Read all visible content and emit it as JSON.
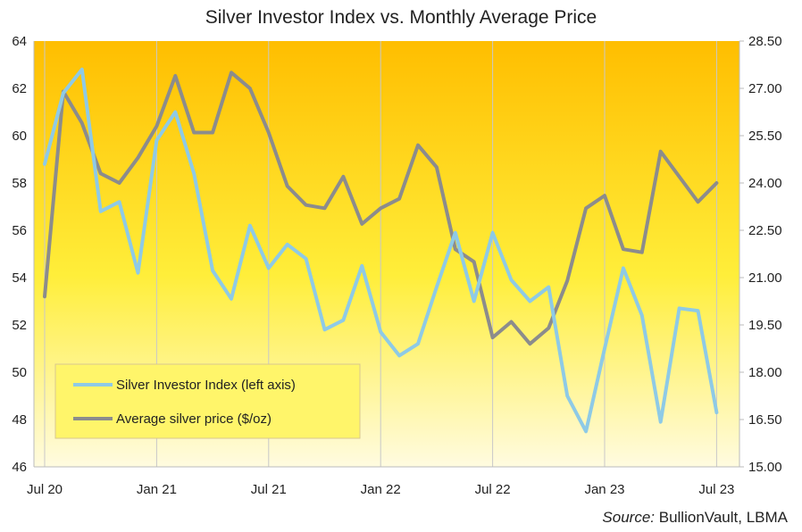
{
  "chart_data": {
    "type": "line",
    "title": "Silver Investor Index vs. Monthly Average Price",
    "x_tick_labels": [
      "Jul 20",
      "Jan 21",
      "Jul 21",
      "Jan 22",
      "Jul 22",
      "Jan 23",
      "Jul 23"
    ],
    "x_months": [
      "2020-07",
      "2020-08",
      "2020-09",
      "2020-10",
      "2020-11",
      "2020-12",
      "2021-01",
      "2021-02",
      "2021-03",
      "2021-04",
      "2021-05",
      "2021-06",
      "2021-07",
      "2021-08",
      "2021-09",
      "2021-10",
      "2021-11",
      "2021-12",
      "2022-01",
      "2022-02",
      "2022-03",
      "2022-04",
      "2022-05",
      "2022-06",
      "2022-07",
      "2022-08",
      "2022-09",
      "2022-10",
      "2022-11",
      "2022-12",
      "2023-01",
      "2023-02",
      "2023-03",
      "2023-04",
      "2023-05",
      "2023-06",
      "2023-07"
    ],
    "left_axis": {
      "ylim": [
        46,
        64
      ],
      "ticks": [
        "64",
        "62",
        "60",
        "58",
        "56",
        "54",
        "52",
        "50",
        "48",
        "46"
      ]
    },
    "right_axis": {
      "ylim": [
        15.0,
        28.5
      ],
      "ticks": [
        "28.50",
        "27.00",
        "25.50",
        "24.00",
        "22.50",
        "21.00",
        "19.50",
        "18.00",
        "16.50",
        "15.00"
      ]
    },
    "series": [
      {
        "name": "Silver Investor Index (left axis)",
        "axis": "left",
        "color": "#8ecae6",
        "values": [
          58.8,
          61.8,
          62.8,
          56.8,
          57.2,
          54.2,
          59.8,
          61.0,
          58.4,
          54.3,
          53.1,
          56.2,
          54.4,
          55.4,
          54.8,
          51.8,
          52.2,
          54.5,
          51.7,
          50.7,
          51.2,
          53.6,
          55.9,
          53.0,
          55.9,
          53.9,
          53.0,
          53.6,
          49.0,
          47.5,
          51.0,
          54.4,
          52.4,
          47.9,
          52.7,
          52.6,
          48.3
        ]
      },
      {
        "name": "Average silver price ($/oz)",
        "axis": "right",
        "color": "#8c8c8c",
        "values": [
          20.4,
          26.9,
          25.9,
          24.3,
          24.0,
          24.8,
          25.8,
          27.4,
          25.6,
          25.6,
          27.5,
          27.0,
          25.6,
          23.9,
          23.3,
          23.2,
          24.2,
          22.7,
          23.2,
          23.5,
          25.2,
          24.5,
          21.9,
          21.5,
          19.1,
          19.6,
          18.9,
          19.4,
          20.9,
          23.2,
          23.6,
          21.9,
          21.8,
          25.0,
          24.2,
          23.4,
          24.0
        ]
      }
    ],
    "legend": {
      "placement": "bottom-left",
      "entries": [
        "Silver Investor Index (left axis)",
        "Average silver price ($/oz)"
      ]
    },
    "grid": "vertical",
    "background_gradient": {
      "top": "#ffbe00",
      "middle": "#ffee3a",
      "bottom": "#fffbe0"
    }
  },
  "source": {
    "label": "Source:",
    "text": " BullionVault,  LBMA"
  }
}
